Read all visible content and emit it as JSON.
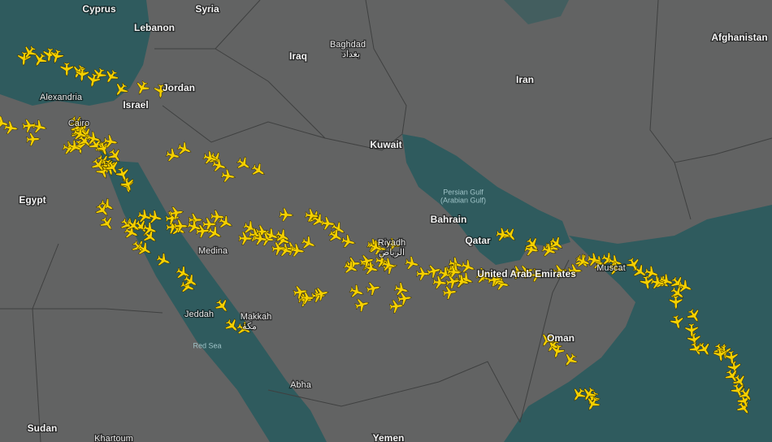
{
  "labels": [
    "Cyprus",
    "Syria",
    "Lebanon",
    "Baghdad",
    "بغداد",
    "Iraq",
    "Iran",
    "Afghanistan",
    "Jordan",
    "Israel",
    "Alexandria",
    "Cairo",
    "Kuwait",
    "Egypt",
    "Persian Gulf",
    "(Arabian Gulf)",
    "Bahrain",
    "Qatar",
    "Riyadh",
    "الرياض",
    "Medina",
    "United Arab Emirates",
    "Muscat",
    "Jeddah",
    "Makkah",
    "مكة",
    "Red Sea",
    "Oman",
    "Abha",
    "Sudan",
    "Khartoum",
    "Yemen"
  ]
}
